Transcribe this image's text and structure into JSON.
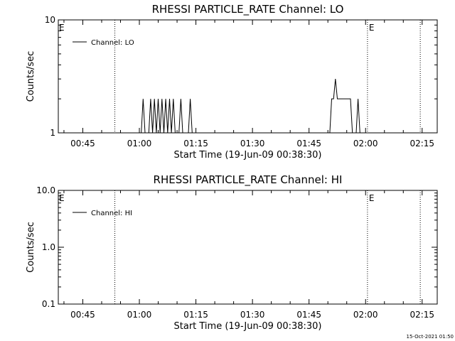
{
  "footer": {
    "timestamp": "15-Oct-2021 01:50"
  },
  "chart_data": [
    {
      "type": "line",
      "title": "RHESSI PARTICLE_RATE Channel: LO",
      "xlabel": "Start Time (19-Jun-09 00:38:30)",
      "ylabel": "Counts/sec",
      "xlim": [
        "00:38:30",
        "02:19:00"
      ],
      "ylim": [
        1,
        10
      ],
      "yscale": "log",
      "x_ticks": [
        "00:45",
        "01:00",
        "01:15",
        "01:30",
        "01:45",
        "02:00",
        "02:15"
      ],
      "y_ticks": [
        "1",
        "10"
      ],
      "legend": {
        "position": "top-left",
        "entries": [
          "Channel: LO"
        ]
      },
      "markers": [
        {
          "time": "00:53:30",
          "style": "dotted",
          "label": ""
        },
        {
          "time": "02:00:30",
          "style": "dotted",
          "label": "E"
        },
        {
          "time": "02:14:30",
          "style": "dotted",
          "label": ""
        }
      ],
      "start_marker_label": "E",
      "series": [
        {
          "name": "Channel: LO",
          "x": [
            "00:38:30",
            "01:00:30",
            "01:01:00",
            "01:01:30",
            "01:02:30",
            "01:03:00",
            "01:03:30",
            "01:04:00",
            "01:04:30",
            "01:05:00",
            "01:05:30",
            "01:06:00",
            "01:06:30",
            "01:07:00",
            "01:07:30",
            "01:08:00",
            "01:08:30",
            "01:09:00",
            "01:09:30",
            "01:10:30",
            "01:11:00",
            "01:11:30",
            "01:13:00",
            "01:13:30",
            "01:14:00",
            "01:50:30",
            "01:51:00",
            "01:51:30",
            "01:52:00",
            "01:52:30",
            "01:53:00",
            "01:54:00",
            "01:56:00",
            "01:56:30",
            "01:57:30",
            "01:58:00",
            "01:58:30",
            "02:19:00"
          ],
          "y": [
            1,
            1,
            2,
            1,
            1,
            2,
            1,
            2,
            1,
            2,
            1,
            2,
            1,
            2,
            1,
            2,
            1,
            2,
            1,
            1,
            2,
            1,
            1,
            2,
            1,
            1,
            2,
            2,
            3,
            2,
            2,
            2,
            2,
            1,
            1,
            2,
            1,
            1
          ]
        }
      ]
    },
    {
      "type": "line",
      "title": "RHESSI PARTICLE_RATE Channel: HI",
      "xlabel": "Start Time (19-Jun-09 00:38:30)",
      "ylabel": "Counts/sec",
      "xlim": [
        "00:38:30",
        "02:19:00"
      ],
      "ylim": [
        0.1,
        10
      ],
      "yscale": "log",
      "x_ticks": [
        "00:45",
        "01:00",
        "01:15",
        "01:30",
        "01:45",
        "02:00",
        "02:15"
      ],
      "y_ticks": [
        "0.1",
        "1.0",
        "10.0"
      ],
      "legend": {
        "position": "top-left",
        "entries": [
          "Channel: HI"
        ]
      },
      "markers": [
        {
          "time": "00:53:30",
          "style": "dotted",
          "label": ""
        },
        {
          "time": "02:00:30",
          "style": "dotted",
          "label": "E"
        },
        {
          "time": "02:14:30",
          "style": "dotted",
          "label": ""
        }
      ],
      "start_marker_label": "E",
      "series": [
        {
          "name": "Channel: HI",
          "x": [],
          "y": []
        }
      ]
    }
  ]
}
